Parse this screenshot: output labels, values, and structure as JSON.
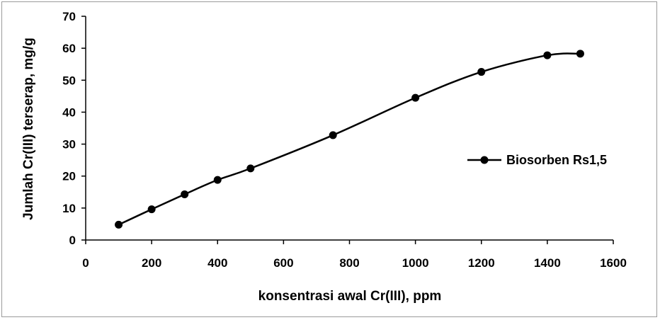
{
  "chart_data": {
    "type": "line",
    "xlabel": "konsentrasi awal Cr(III), ppm",
    "ylabel": "Jumlah Cr(III) terserap, mg/g",
    "xlim": [
      0,
      1600
    ],
    "ylim": [
      0,
      70
    ],
    "x_ticks": [
      0,
      200,
      400,
      600,
      800,
      1000,
      1200,
      1400,
      1600
    ],
    "y_ticks": [
      0,
      10,
      20,
      30,
      40,
      50,
      60,
      70
    ],
    "grid": false,
    "legend_position": "right",
    "series": [
      {
        "name": "Biosorben Rs1,5",
        "color": "#000000",
        "marker": "circle",
        "smooth": true,
        "x": [
          100,
          200,
          300,
          400,
          500,
          750,
          1000,
          1200,
          1400,
          1500
        ],
        "y": [
          4.8,
          9.6,
          14.3,
          18.8,
          22.4,
          32.8,
          44.5,
          52.6,
          57.8,
          58.3
        ]
      }
    ]
  }
}
